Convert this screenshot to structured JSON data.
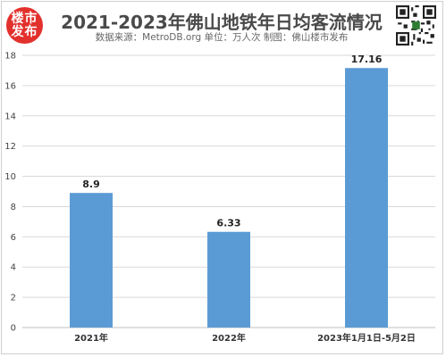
{
  "header": {
    "logo_line1": "楼市",
    "logo_line2": "发布",
    "title": "2021-2023年佛山地铁年日均客流情况",
    "subtitle": "数据来源：MetroDB.org   单位：万人次   制图：佛山楼市发布"
  },
  "icons": {
    "logo": "brand-logo",
    "qr": "qr-code"
  },
  "colors": {
    "bar": "#5b9bd5",
    "grid": "#d9d9d9",
    "logo": "#e2312d"
  },
  "chart_data": {
    "type": "bar",
    "categories": [
      "2021年",
      "2022年",
      "2023年1月1日-5月2日"
    ],
    "values": [
      8.9,
      6.33,
      17.16
    ],
    "value_labels": [
      "8.9",
      "6.33",
      "17.16"
    ],
    "ylim": [
      0,
      18
    ],
    "yticks": [
      "0",
      "2",
      "4",
      "6",
      "8",
      "10",
      "12",
      "14",
      "16",
      "18"
    ],
    "grid": true,
    "legend": "none"
  }
}
